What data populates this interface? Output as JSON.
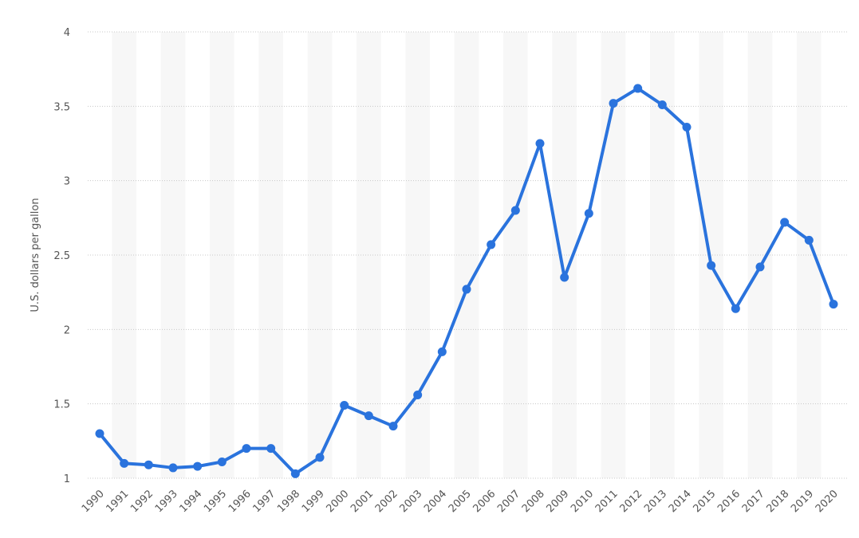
{
  "chart_data": {
    "type": "line",
    "y_label": "U.S. dollars per gallon",
    "categories": [
      "1990",
      "1991",
      "1992",
      "1993",
      "1994",
      "1995",
      "1996",
      "1997",
      "1998",
      "1999",
      "2000",
      "2001",
      "2002",
      "2003",
      "2004",
      "2005",
      "2006",
      "2007",
      "2008",
      "2009",
      "2010",
      "2011",
      "2012",
      "2013",
      "2014",
      "2015",
      "2016",
      "2017",
      "2018",
      "2019",
      "2020"
    ],
    "values": [
      1.3,
      1.1,
      1.09,
      1.07,
      1.08,
      1.11,
      1.2,
      1.2,
      1.03,
      1.14,
      1.49,
      1.42,
      1.35,
      1.56,
      1.85,
      2.27,
      2.57,
      2.8,
      3.25,
      2.35,
      2.78,
      3.52,
      3.62,
      3.51,
      3.36,
      2.43,
      2.14,
      2.42,
      2.72,
      2.6,
      2.17
    ],
    "color": "#2a73dd",
    "ylim": [
      1,
      4
    ],
    "yticks": [
      1,
      1.5,
      2,
      2.5,
      3,
      3.5,
      4
    ],
    "grid": true
  }
}
